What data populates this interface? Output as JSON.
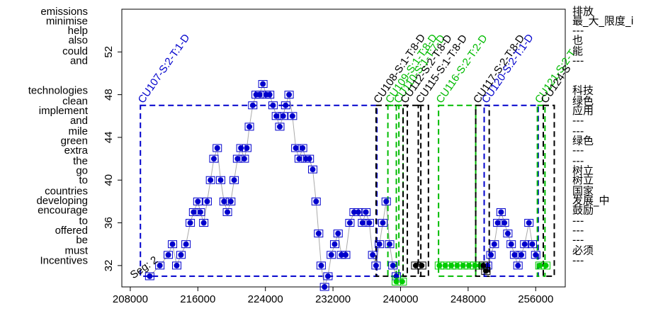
{
  "chart_data": {
    "type": "scatter",
    "title": "",
    "xlabel": "",
    "ylabel": "",
    "xlim": [
      207000,
      259500
    ],
    "ylim": [
      30,
      56
    ],
    "grid": false,
    "x_ticks": [
      "208000",
      "216000",
      "224000",
      "232000",
      "240000",
      "248000",
      "256000"
    ],
    "y_ticks": [
      "32",
      "36",
      "40",
      "44",
      "48",
      "52"
    ],
    "left_words": [
      {
        "text": "emissions",
        "y": 55.8
      },
      {
        "text": "minimise",
        "y": 54.9
      },
      {
        "text": "help",
        "y": 54.0
      },
      {
        "text": "also",
        "y": 53.1
      },
      {
        "text": "could",
        "y": 52.1
      },
      {
        "text": "and",
        "y": 51.2
      },
      {
        "text": "technologies",
        "y": 48.4
      },
      {
        "text": "clean",
        "y": 47.4
      },
      {
        "text": "implement",
        "y": 46.5
      },
      {
        "text": "and",
        "y": 45.6
      },
      {
        "text": "mile",
        "y": 44.6
      },
      {
        "text": "green",
        "y": 43.7
      },
      {
        "text": "extra",
        "y": 42.8
      },
      {
        "text": "the",
        "y": 41.8
      },
      {
        "text": "go",
        "y": 40.9
      },
      {
        "text": "to",
        "y": 40.0
      },
      {
        "text": "countries",
        "y": 39.0
      },
      {
        "text": "developing",
        "y": 38.1
      },
      {
        "text": "encourage",
        "y": 37.2
      },
      {
        "text": "to",
        "y": 36.2
      },
      {
        "text": "offered",
        "y": 35.3
      },
      {
        "text": "be",
        "y": 34.4
      },
      {
        "text": "must",
        "y": 33.4
      },
      {
        "text": "Incentives",
        "y": 32.5
      }
    ],
    "right_words": [
      {
        "text": "排放",
        "y": 55.8
      },
      {
        "text": "最_大_限度_i",
        "y": 54.9
      },
      {
        "text": "---",
        "y": 54.0
      },
      {
        "text": "也",
        "y": 53.1
      },
      {
        "text": "能",
        "y": 52.1
      },
      {
        "text": "---",
        "y": 51.2
      },
      {
        "text": "科技",
        "y": 48.4
      },
      {
        "text": "绿色",
        "y": 47.4
      },
      {
        "text": "应用",
        "y": 46.5
      },
      {
        "text": "---",
        "y": 45.6
      },
      {
        "text": "---",
        "y": 44.6
      },
      {
        "text": "绿色",
        "y": 43.7
      },
      {
        "text": "---",
        "y": 42.8
      },
      {
        "text": "---",
        "y": 41.8
      },
      {
        "text": "树立",
        "y": 40.9
      },
      {
        "text": "树立",
        "y": 40.0
      },
      {
        "text": "国家",
        "y": 39.0
      },
      {
        "text": "发展_中",
        "y": 38.1
      },
      {
        "text": "鼓励",
        "y": 37.2
      },
      {
        "text": "---",
        "y": 36.2
      },
      {
        "text": "---",
        "y": 35.3
      },
      {
        "text": "---",
        "y": 34.4
      },
      {
        "text": "必须",
        "y": 33.4
      },
      {
        "text": "---",
        "y": 32.5
      }
    ],
    "segments": [
      {
        "label": "CU107-S:2-T:1-D",
        "x0": 209200,
        "x1": 237200,
        "y0": 31.0,
        "y1": 47.0,
        "color": "#0000cc"
      },
      {
        "label": "CU108-S:1-T:8-D",
        "x0": 237100,
        "x1": 240800,
        "y0": 31.0,
        "y1": 47.0,
        "color": "#000000"
      },
      {
        "label": "CU109-S:1-T:8-D",
        "x0": 238500,
        "x1": 239800,
        "y0": 31.0,
        "y1": 47.0,
        "color": "#00bb00"
      },
      {
        "label": "CU110-S:1-T:7-D",
        "x0": 239500,
        "x1": 240300,
        "y0": 31.0,
        "y1": 47.0,
        "color": "#00bb00"
      },
      {
        "label": "CU112-S:2-T:8-D",
        "x0": 240300,
        "x1": 242400,
        "y0": 31.0,
        "y1": 47.0,
        "color": "#000000"
      },
      {
        "label": "CU115-S:1-T:8-D",
        "x0": 242100,
        "x1": 243300,
        "y0": 31.0,
        "y1": 47.0,
        "color": "#000000"
      },
      {
        "label": "CU116-S:2-T:2-D",
        "x0": 244500,
        "x1": 248900,
        "y0": 31.0,
        "y1": 47.0,
        "color": "#00bb00"
      },
      {
        "label": "CU117-S:2-T:8-D",
        "x0": 248900,
        "x1": 250500,
        "y0": 31.0,
        "y1": 47.0,
        "color": "#000000"
      },
      {
        "label": "CU120-S:2-T:1-D",
        "x0": 249900,
        "x1": 256300,
        "y0": 31.0,
        "y1": 47.0,
        "color": "#0000cc"
      },
      {
        "label": "CU121-S:2-T",
        "x0": 256200,
        "x1": 257100,
        "y0": 31.0,
        "y1": 47.0,
        "color": "#00bb00"
      },
      {
        "label": "CU124-S",
        "x0": 256900,
        "x1": 258200,
        "y0": 31.0,
        "y1": 47.0,
        "color": "#000000"
      }
    ],
    "seg_label": "Seg: 2",
    "series": [
      {
        "color": "#0000cc",
        "points": [
          [
            210300,
            31
          ],
          [
            211500,
            32
          ],
          [
            212500,
            33
          ],
          [
            213000,
            34
          ],
          [
            213500,
            32
          ],
          [
            214000,
            33
          ],
          [
            214600,
            34
          ],
          [
            215100,
            36
          ],
          [
            215500,
            37
          ],
          [
            216000,
            38
          ],
          [
            216300,
            37
          ],
          [
            216700,
            36
          ],
          [
            217100,
            38
          ],
          [
            217500,
            40
          ],
          [
            217900,
            42
          ],
          [
            218300,
            43
          ],
          [
            218700,
            40
          ],
          [
            219100,
            38
          ],
          [
            219500,
            37
          ],
          [
            219900,
            38
          ],
          [
            220300,
            40
          ],
          [
            220700,
            42
          ],
          [
            221100,
            43
          ],
          [
            221500,
            42
          ],
          [
            221800,
            43
          ],
          [
            222100,
            45
          ],
          [
            222500,
            47
          ],
          [
            222900,
            48
          ],
          [
            223300,
            48
          ],
          [
            223700,
            49
          ],
          [
            224100,
            48
          ],
          [
            224500,
            48
          ],
          [
            224900,
            47
          ],
          [
            225300,
            46
          ],
          [
            225700,
            45
          ],
          [
            226100,
            46
          ],
          [
            226400,
            47
          ],
          [
            226800,
            48
          ],
          [
            227200,
            46
          ],
          [
            227600,
            43
          ],
          [
            228000,
            42
          ],
          [
            228400,
            43
          ],
          [
            228800,
            42
          ],
          [
            229200,
            42
          ],
          [
            229600,
            41
          ],
          [
            230000,
            38
          ],
          [
            230300,
            35
          ],
          [
            230600,
            32
          ],
          [
            231000,
            30
          ],
          [
            231400,
            31
          ],
          [
            231800,
            33
          ],
          [
            232200,
            34
          ],
          [
            232600,
            35
          ],
          [
            233000,
            33
          ],
          [
            233500,
            33
          ],
          [
            234000,
            36
          ],
          [
            234500,
            37
          ],
          [
            235000,
            37
          ],
          [
            235500,
            36
          ],
          [
            235900,
            37
          ],
          [
            236300,
            36
          ],
          [
            236700,
            33
          ],
          [
            237100,
            32
          ],
          [
            237500,
            34
          ],
          [
            237900,
            36
          ],
          [
            238300,
            38
          ],
          [
            238700,
            34
          ],
          [
            239100,
            32
          ],
          [
            239500,
            31
          ],
          [
            250300,
            32
          ],
          [
            250700,
            33
          ],
          [
            251100,
            34
          ],
          [
            251500,
            36
          ],
          [
            251900,
            37
          ],
          [
            252300,
            36
          ],
          [
            252700,
            35
          ],
          [
            253100,
            34
          ],
          [
            253500,
            33
          ],
          [
            253900,
            32
          ],
          [
            254300,
            33
          ],
          [
            254700,
            34
          ],
          [
            255200,
            36
          ],
          [
            255600,
            34
          ],
          [
            256000,
            33
          ]
        ]
      },
      {
        "color": "#00cc00",
        "points": [
          [
            239500,
            30.5
          ],
          [
            240200,
            30.5
          ],
          [
            244600,
            32
          ],
          [
            245300,
            32
          ],
          [
            246000,
            32
          ],
          [
            246700,
            32
          ],
          [
            247400,
            32
          ],
          [
            248100,
            32
          ],
          [
            248800,
            32
          ],
          [
            249400,
            32
          ],
          [
            256500,
            32
          ],
          [
            257200,
            32
          ]
        ]
      },
      {
        "color": "#000000",
        "points": [
          [
            241800,
            32
          ],
          [
            242500,
            32
          ],
          [
            249800,
            32
          ],
          [
            250100,
            31.5
          ]
        ]
      }
    ]
  }
}
